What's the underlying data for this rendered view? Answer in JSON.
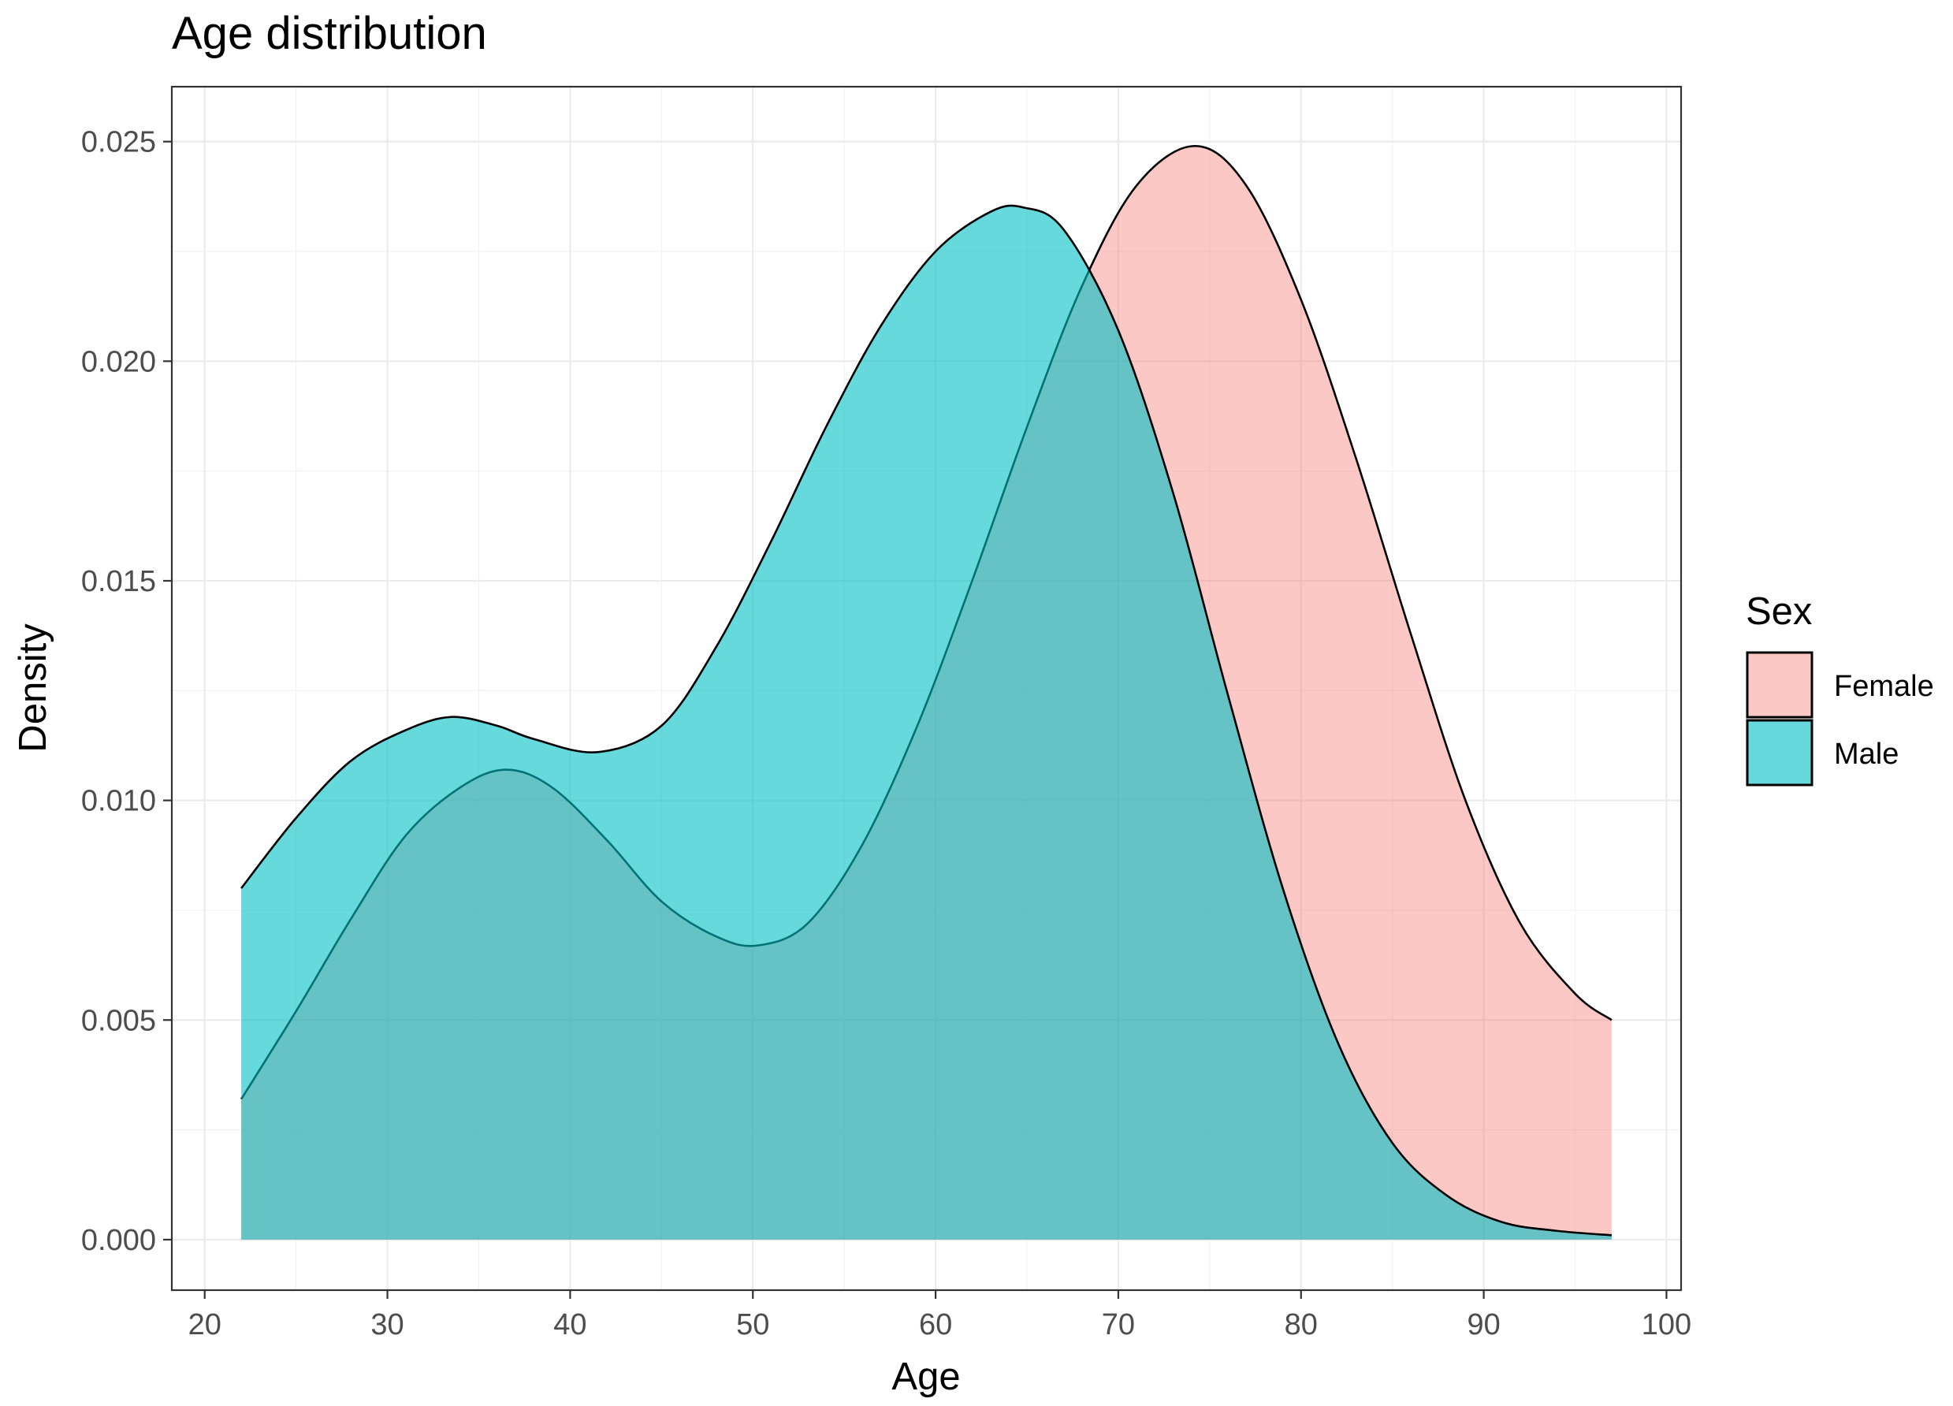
{
  "chart_data": {
    "type": "area",
    "title": "Age distribution",
    "xlabel": "Age",
    "ylabel": "Density",
    "xlim": [
      18.2,
      100.8
    ],
    "ylim": [
      -0.00115,
      0.02625
    ],
    "x_ticks": [
      20,
      30,
      40,
      50,
      60,
      70,
      80,
      90,
      100
    ],
    "y_ticks": [
      0.0,
      0.005,
      0.01,
      0.015,
      0.02,
      0.025
    ],
    "x_tick_labels": [
      "20",
      "30",
      "40",
      "50",
      "60",
      "70",
      "80",
      "90",
      "100"
    ],
    "y_tick_labels": [
      "0.000",
      "0.005",
      "0.010",
      "0.015",
      "0.020",
      "0.025"
    ],
    "grid": true,
    "legend": {
      "title": "Sex",
      "position": "right"
    },
    "series": [
      {
        "name": "Female",
        "color": "#F8766D",
        "alpha": 0.4,
        "x": [
          22,
          25,
          28,
          31,
          34,
          36.5,
          39,
          42,
          45,
          48,
          50.3,
          53,
          56,
          59,
          62,
          65,
          68,
          71,
          74.2,
          77,
          80,
          83,
          86,
          89,
          92,
          95,
          97
        ],
        "y": [
          0.0032,
          0.0052,
          0.0073,
          0.0092,
          0.0103,
          0.0107,
          0.0103,
          0.0091,
          0.0077,
          0.0069,
          0.0067,
          0.0072,
          0.009,
          0.0117,
          0.015,
          0.0185,
          0.0217,
          0.024,
          0.0249,
          0.024,
          0.0214,
          0.0178,
          0.0138,
          0.01,
          0.0072,
          0.0056,
          0.005
        ]
      },
      {
        "name": "Male",
        "color": "#00BFC4",
        "alpha": 0.6,
        "x": [
          22,
          25,
          28,
          31,
          33.5,
          36,
          38,
          41.5,
          45,
          48,
          51,
          54,
          57,
          60,
          63,
          64.8,
          67,
          70,
          73,
          76,
          79,
          82,
          85,
          88,
          91,
          94,
          97
        ],
        "y": [
          0.008,
          0.0096,
          0.0109,
          0.0116,
          0.0119,
          0.0117,
          0.0114,
          0.0111,
          0.0117,
          0.0135,
          0.0159,
          0.0185,
          0.0208,
          0.0225,
          0.0234,
          0.0235,
          0.023,
          0.0207,
          0.017,
          0.0124,
          0.008,
          0.0045,
          0.0022,
          0.001,
          0.0004,
          0.0002,
          0.0001
        ]
      }
    ]
  }
}
